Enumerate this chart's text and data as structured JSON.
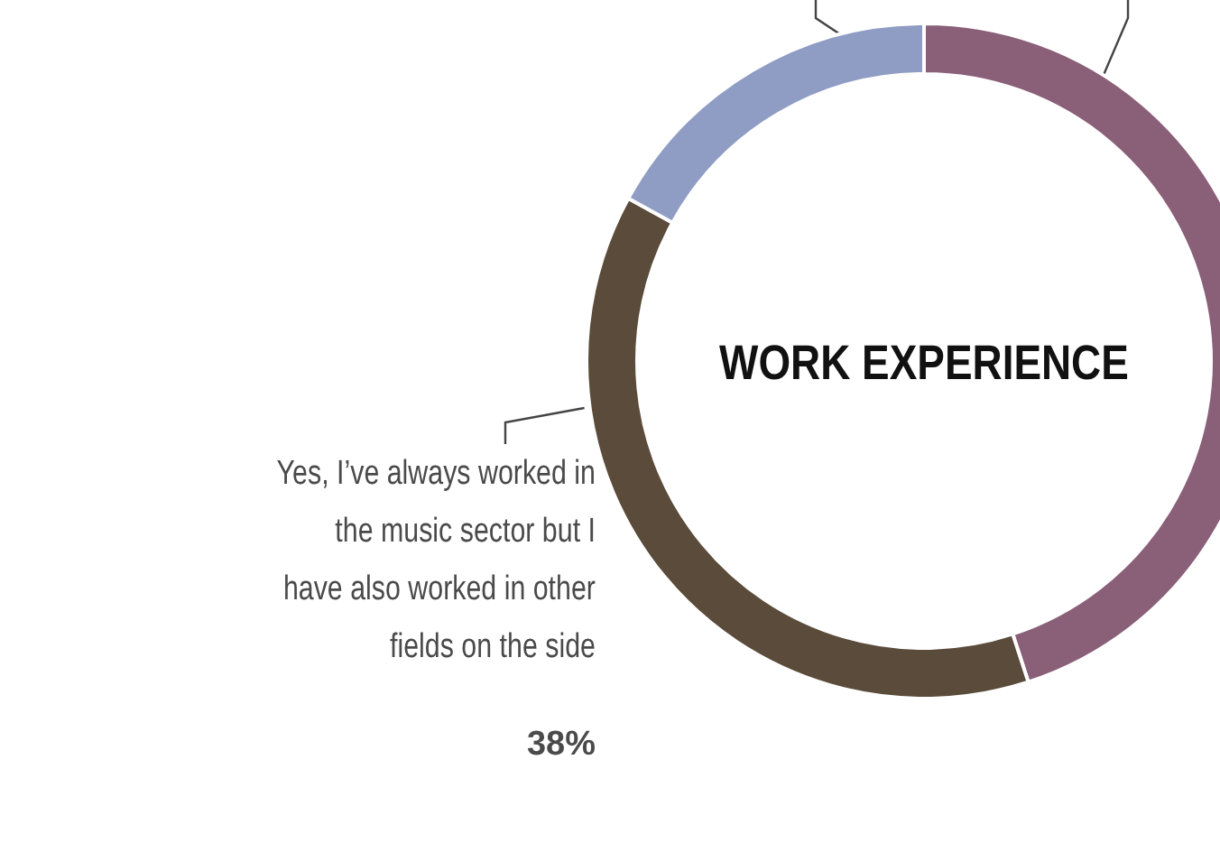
{
  "chart_data": {
    "type": "donut",
    "title": "WORK EXPERIENCE",
    "categories": [
      null,
      "Yes, I’ve always worked in the music sector but I have also worked in other fields on the side",
      null
    ],
    "values": [
      45,
      38,
      17
    ],
    "colors": [
      "#8a5f78",
      "#5a4b3a",
      "#8f9cc4"
    ],
    "value_labels": [
      null,
      "38%",
      null
    ]
  }
}
